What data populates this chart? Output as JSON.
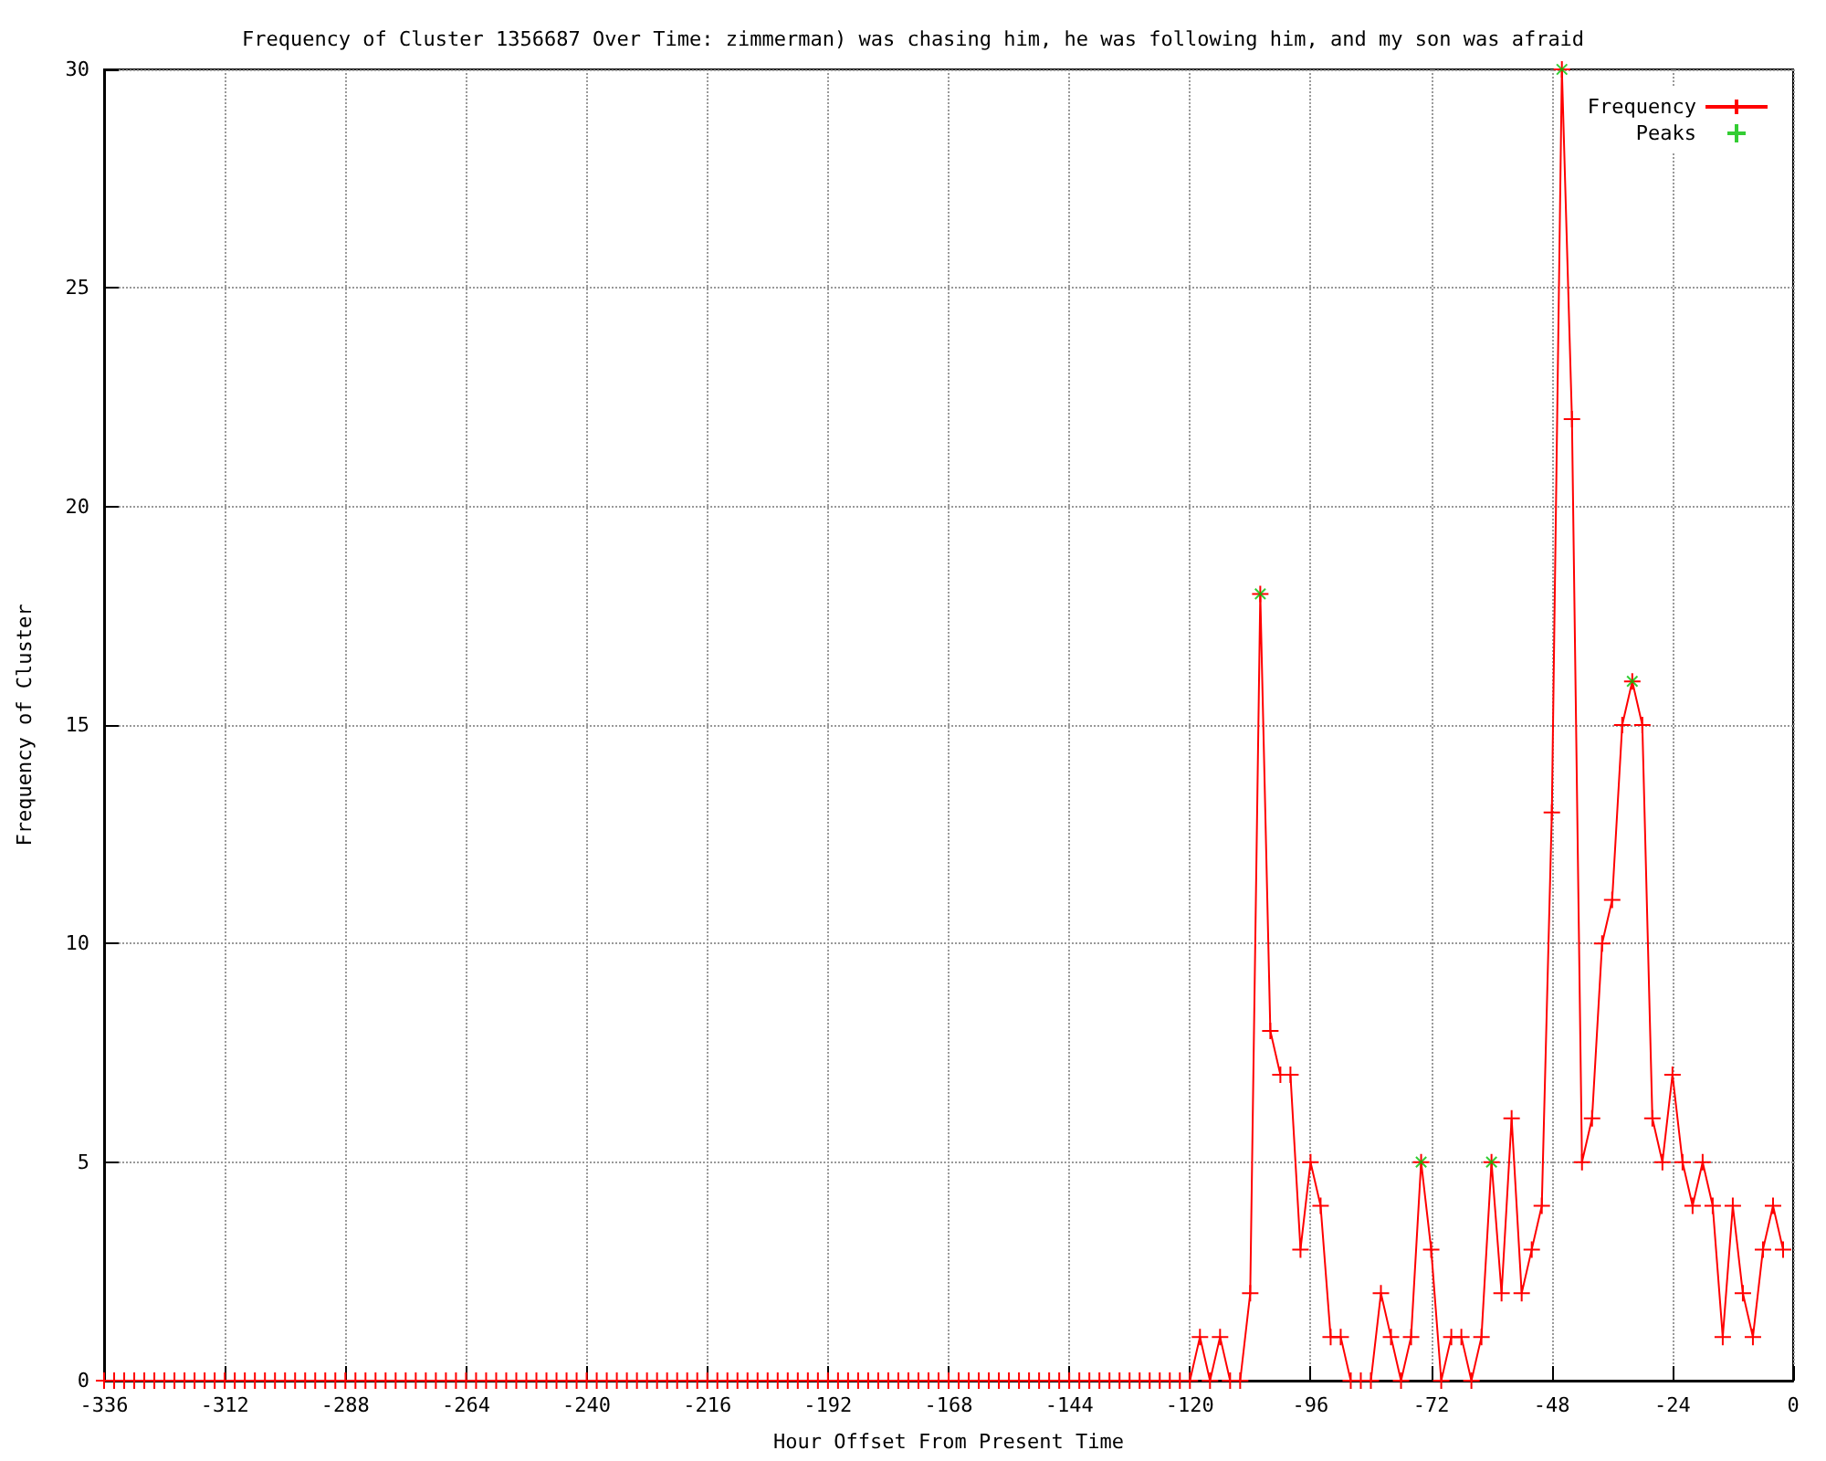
{
  "chart_data": {
    "type": "line",
    "title": "Frequency of Cluster 1356687 Over Time: zimmerman) was chasing him, he was following him, and my son was afraid",
    "xlabel": "Hour Offset From Present Time",
    "ylabel": "Frequency of Cluster",
    "xlim": [
      -336,
      0
    ],
    "xticks": [
      -336,
      -312,
      -288,
      -264,
      -240,
      -216,
      -192,
      -168,
      -144,
      -120,
      -96,
      -72,
      -48,
      -24,
      0
    ],
    "ylim": [
      0,
      30
    ],
    "yticks": [
      0,
      5,
      10,
      15,
      20,
      25,
      30
    ],
    "grid": true,
    "legend": "top right",
    "line_style": "solid",
    "series": [
      {
        "name": "Frequency",
        "marker": "cross",
        "color": "#ff0000",
        "x": [
          -336,
          -334,
          -332,
          -330,
          -328,
          -326,
          -324,
          -322,
          -320,
          -318,
          -316,
          -314,
          -312,
          -310,
          -308,
          -306,
          -304,
          -302,
          -300,
          -298,
          -296,
          -294,
          -292,
          -290,
          -288,
          -286,
          -284,
          -282,
          -280,
          -278,
          -276,
          -274,
          -272,
          -270,
          -268,
          -266,
          -264,
          -262,
          -260,
          -258,
          -256,
          -254,
          -252,
          -250,
          -248,
          -246,
          -244,
          -242,
          -240,
          -238,
          -236,
          -234,
          -232,
          -230,
          -228,
          -226,
          -224,
          -222,
          -220,
          -218,
          -216,
          -214,
          -212,
          -210,
          -208,
          -206,
          -204,
          -202,
          -200,
          -198,
          -196,
          -194,
          -192,
          -190,
          -188,
          -186,
          -184,
          -182,
          -180,
          -178,
          -176,
          -174,
          -172,
          -170,
          -168,
          -166,
          -164,
          -162,
          -160,
          -158,
          -156,
          -154,
          -152,
          -150,
          -148,
          -146,
          -144,
          -142,
          -140,
          -138,
          -136,
          -134,
          -132,
          -130,
          -128,
          -126,
          -124,
          -122,
          -120,
          -118,
          -116,
          -114,
          -112,
          -110,
          -108,
          -106,
          -104,
          -102,
          -100,
          -98,
          -96,
          -94,
          -92,
          -90,
          -88,
          -86,
          -84,
          -82,
          -80,
          -78,
          -76,
          -74,
          -72,
          -70,
          -68,
          -66,
          -64,
          -62,
          -60,
          -58,
          -56,
          -54,
          -52,
          -50,
          -48,
          -46,
          -44,
          -42,
          -40,
          -38,
          -36,
          -34,
          -32,
          -30,
          -28,
          -26,
          -24,
          -22,
          -20,
          -18,
          -16,
          -14,
          -12,
          -10,
          -8,
          -6,
          -4,
          -2
        ],
        "values": [
          0,
          0,
          0,
          0,
          0,
          0,
          0,
          0,
          0,
          0,
          0,
          0,
          0,
          0,
          0,
          0,
          0,
          0,
          0,
          0,
          0,
          0,
          0,
          0,
          0,
          0,
          0,
          0,
          0,
          0,
          0,
          0,
          0,
          0,
          0,
          0,
          0,
          0,
          0,
          0,
          0,
          0,
          0,
          0,
          0,
          0,
          0,
          0,
          0,
          0,
          0,
          0,
          0,
          0,
          0,
          0,
          0,
          0,
          0,
          0,
          0,
          0,
          0,
          0,
          0,
          0,
          0,
          0,
          0,
          0,
          0,
          0,
          0,
          0,
          0,
          0,
          0,
          0,
          0,
          0,
          0,
          0,
          0,
          0,
          0,
          0,
          0,
          0,
          0,
          0,
          0,
          0,
          0,
          0,
          0,
          0,
          0,
          0,
          0,
          0,
          0,
          0,
          0,
          0,
          0,
          0,
          0,
          0,
          0,
          1,
          0,
          1,
          0,
          0,
          2,
          18,
          8,
          7,
          7,
          3,
          5,
          4,
          1,
          1,
          0,
          0,
          0,
          2,
          1,
          0,
          1,
          5,
          3,
          0,
          1,
          1,
          0,
          1,
          5,
          2,
          6,
          2,
          3,
          4,
          13,
          30,
          22,
          5,
          6,
          10,
          11,
          15,
          16,
          15,
          6,
          5,
          7,
          5,
          4,
          5,
          4,
          1,
          4,
          2,
          1,
          3,
          4,
          3
        ]
      },
      {
        "name": "Peaks",
        "type": "scatter",
        "marker": "cross",
        "color": "#00c000",
        "x": [
          -106,
          -74,
          -60,
          -46,
          -32
        ],
        "values": [
          18,
          5,
          5,
          30,
          16
        ]
      }
    ]
  }
}
